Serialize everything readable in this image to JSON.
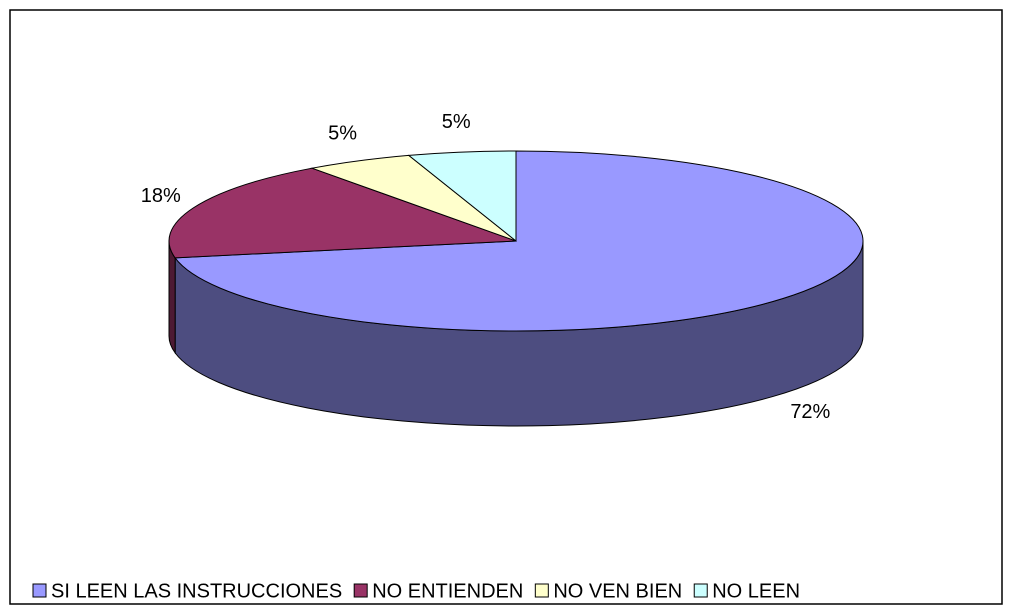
{
  "chart_data": {
    "type": "pie",
    "categories": [
      "SI LEEN LAS INSTRUCCIONES",
      "NO ENTIENDEN",
      "NO VEN BIEN",
      "NO LEEN"
    ],
    "values": [
      72,
      18,
      5,
      5
    ],
    "value_labels": [
      "72%",
      "18%",
      "5%",
      "5%"
    ],
    "colors": [
      "#9999ff",
      "#993366",
      "#ffffcc",
      "#ccffff"
    ],
    "legend": "bottom"
  }
}
